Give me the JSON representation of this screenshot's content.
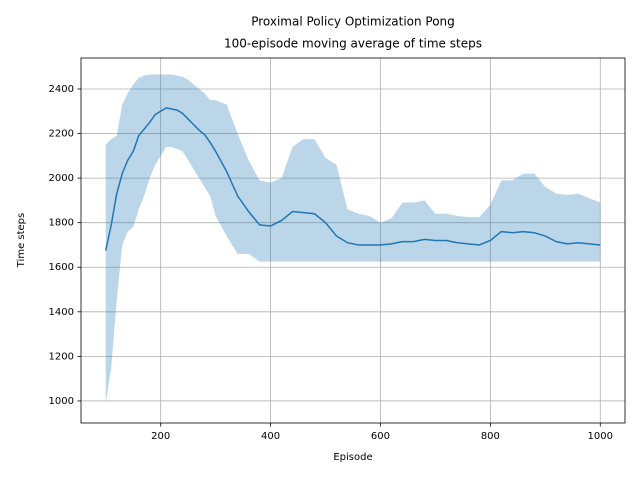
{
  "chart_data": {
    "type": "line",
    "title": "Proximal Policy Optimization Pong",
    "subtitle": "100-episode moving average of time steps",
    "x_label": "Episode",
    "y_label": "Time steps",
    "x": [
      100,
      110,
      120,
      130,
      140,
      150,
      160,
      170,
      180,
      190,
      200,
      210,
      220,
      230,
      240,
      250,
      260,
      270,
      280,
      290,
      300,
      320,
      340,
      360,
      380,
      400,
      420,
      440,
      460,
      480,
      500,
      520,
      540,
      560,
      580,
      600,
      620,
      640,
      660,
      680,
      700,
      720,
      740,
      760,
      780,
      800,
      820,
      840,
      860,
      880,
      900,
      920,
      940,
      960,
      980,
      1000
    ],
    "series": [
      {
        "color": "#1f77b4",
        "values": [
          1675,
          1790,
          1930,
          2020,
          2080,
          2120,
          2190,
          2220,
          2250,
          2285,
          2300,
          2315,
          2310,
          2305,
          2290,
          2265,
          2240,
          2215,
          2195,
          2160,
          2120,
          2030,
          1920,
          1850,
          1790,
          1785,
          1810,
          1850,
          1845,
          1840,
          1800,
          1740,
          1710,
          1700,
          1700,
          1700,
          1705,
          1715,
          1715,
          1725,
          1720,
          1720,
          1710,
          1705,
          1700,
          1720,
          1760,
          1755,
          1760,
          1755,
          1740,
          1715,
          1705,
          1710,
          1705,
          1700
        ]
      }
    ],
    "band": {
      "color": "#1f77b4",
      "opacity": 0.3,
      "lower": [
        990,
        1150,
        1450,
        1700,
        1760,
        1780,
        1860,
        1920,
        2000,
        2060,
        2100,
        2140,
        2140,
        2130,
        2120,
        2080,
        2040,
        2000,
        1960,
        1920,
        1830,
        1740,
        1660,
        1660,
        1625,
        1625,
        1625,
        1625,
        1625,
        1625,
        1625,
        1625,
        1625,
        1625,
        1625,
        1625,
        1625,
        1625,
        1625,
        1625,
        1625,
        1625,
        1625,
        1625,
        1625,
        1625,
        1625,
        1625,
        1625,
        1625,
        1625,
        1625,
        1625,
        1625,
        1625,
        1625
      ],
      "upper": [
        2150,
        2175,
        2190,
        2330,
        2380,
        2420,
        2450,
        2460,
        2465,
        2465,
        2465,
        2465,
        2465,
        2460,
        2455,
        2440,
        2420,
        2400,
        2380,
        2350,
        2350,
        2330,
        2200,
        2080,
        1990,
        1980,
        2000,
        2140,
        2175,
        2175,
        2090,
        2060,
        1860,
        1840,
        1830,
        1800,
        1820,
        1890,
        1890,
        1900,
        1840,
        1840,
        1830,
        1825,
        1825,
        1880,
        1990,
        1990,
        2020,
        2020,
        1960,
        1930,
        1925,
        1930,
        1910,
        1890
      ]
    },
    "xlim": [
      55,
      1045
    ],
    "ylim": [
      901,
      2539
    ],
    "xticks": [
      200,
      400,
      600,
      800,
      1000
    ],
    "yticks": [
      1000,
      1200,
      1400,
      1600,
      1800,
      2000,
      2200,
      2400
    ],
    "grid": true
  }
}
